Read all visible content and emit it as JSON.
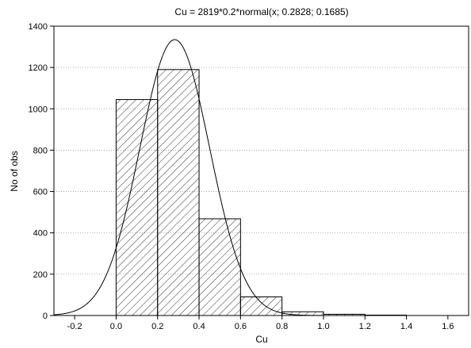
{
  "chart_data": {
    "type": "bar",
    "title": "Cu = 2819*0.2*normal(x; 0.2828; 0.1685)",
    "xlabel": "Cu",
    "ylabel": "No of obs",
    "xlim": [
      -0.3,
      1.7
    ],
    "ylim": [
      0,
      1400
    ],
    "grid": true,
    "bin_width": 0.2,
    "bins": [
      {
        "start": 0.0,
        "end": 0.2,
        "value": 1045
      },
      {
        "start": 0.2,
        "end": 0.4,
        "value": 1190
      },
      {
        "start": 0.4,
        "end": 0.6,
        "value": 468
      },
      {
        "start": 0.6,
        "end": 0.8,
        "value": 90
      },
      {
        "start": 0.8,
        "end": 1.0,
        "value": 18
      },
      {
        "start": 1.0,
        "end": 1.2,
        "value": 6
      },
      {
        "start": 1.2,
        "end": 1.4,
        "value": 2
      }
    ],
    "fit_curve": {
      "n": 2819,
      "bin_width": 0.2,
      "mean": 0.2828,
      "sd": 0.1685
    },
    "x_ticks": [
      "-0.2",
      "0.0",
      "0.2",
      "0.4",
      "0.6",
      "0.8",
      "1.0",
      "1.2",
      "1.4",
      "1.6"
    ],
    "y_ticks": [
      "0",
      "200",
      "400",
      "600",
      "800",
      "1000",
      "1200",
      "1400"
    ]
  }
}
